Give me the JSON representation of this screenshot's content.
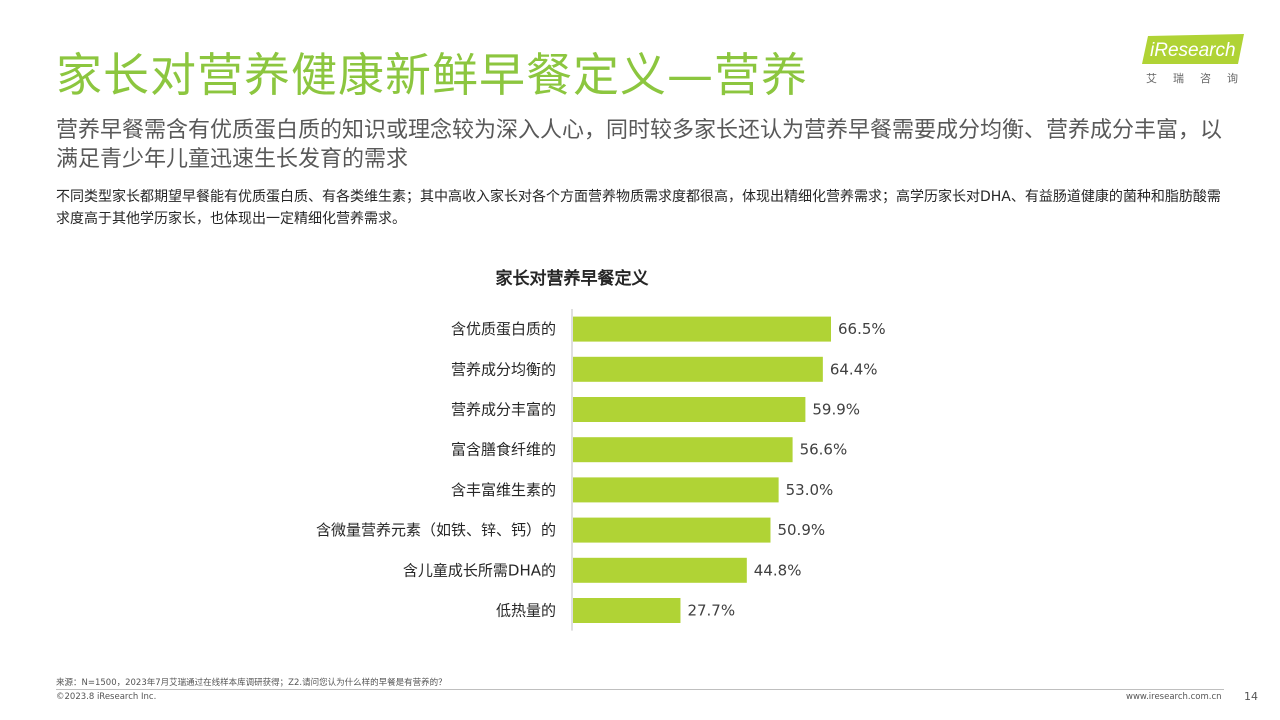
{
  "header": {
    "title": "家长对营养健康新鲜早餐定义—营养",
    "subtitle": "营养早餐需含有优质蛋白质的知识或理念较为深入人心，同时较多家长还认为营养早餐需要成分均衡、营养成分丰富，以满足青少年儿童迅速生长发育的需求",
    "description": "不同类型家长都期望早餐能有优质蛋白质、有各类维生素；其中高收入家长对各个方面营养物质需求度都很高，体现出精细化营养需求；高学历家长对DHA、有益肠道健康的菌种和脂肪酸需求度高于其他学历家长，也体现出一定精细化营养需求。"
  },
  "logo": {
    "brand": "iResearch",
    "cn": "艾瑞咨询"
  },
  "chart_data": {
    "type": "bar",
    "orientation": "horizontal",
    "title": "家长对营养早餐定义",
    "categories": [
      "含优质蛋白质的",
      "营养成分均衡的",
      "营养成分丰富的",
      "富含膳食纤维的",
      "含丰富维生素的",
      "含微量营养元素（如铁、锌、钙）的",
      "含儿童成长所需DHA的",
      "低热量的"
    ],
    "values": [
      66.5,
      64.4,
      59.9,
      56.6,
      53.0,
      50.9,
      44.8,
      27.7
    ],
    "value_labels": [
      "66.5%",
      "64.4%",
      "59.9%",
      "56.6%",
      "53.0%",
      "50.9%",
      "44.8%",
      "27.7%"
    ],
    "xlim": [
      0,
      100
    ],
    "bar_color": "#b0d335",
    "grid": false
  },
  "footer": {
    "source": "来源：N=1500，2023年7月艾瑞通过在线样本库调研获得；Z2.请问您认为什么样的早餐是有营养的？",
    "copyright": "©2023.8 iResearch Inc.",
    "website": "www.iresearch.com.cn",
    "page": "14"
  },
  "colors": {
    "title": "#8cc63f",
    "bar": "#b0d335",
    "logo_bg": "#b0d335"
  }
}
